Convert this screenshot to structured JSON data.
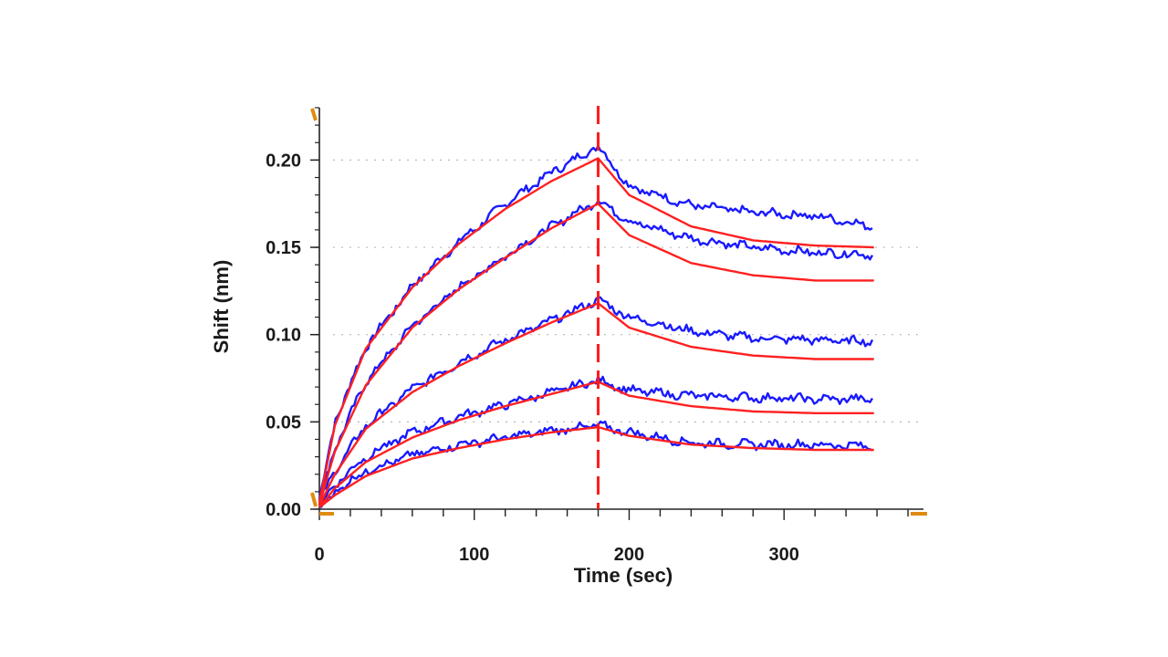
{
  "chart_data": {
    "type": "line",
    "title": "",
    "xlabel": "Time (sec)",
    "ylabel": "Shift (nm)",
    "xlim": [
      0,
      390
    ],
    "ylim": [
      0,
      0.23
    ],
    "xticks": [
      "0",
      "100",
      "200",
      "300"
    ],
    "xtick_values": [
      0,
      100,
      200,
      300
    ],
    "yticks": [
      "0.00",
      "0.05",
      "0.10",
      "0.15",
      "0.20"
    ],
    "ytick_values": [
      0,
      0.05,
      0.1,
      0.15,
      0.2
    ],
    "grid": "horizontal dotted",
    "association_end_x": 180,
    "end_x": 358,
    "series": [
      {
        "role": "measured",
        "color": "#1a1aff",
        "x": [
          0,
          10,
          30,
          60,
          90,
          120,
          150,
          180,
          200,
          240,
          280,
          320,
          358
        ],
        "values": [
          0.005,
          0.05,
          0.093,
          0.128,
          0.153,
          0.175,
          0.193,
          0.208,
          0.185,
          0.174,
          0.17,
          0.168,
          0.162
        ]
      },
      {
        "role": "fit",
        "color": "#ff2020",
        "x": [
          0,
          10,
          30,
          60,
          90,
          120,
          150,
          180,
          200,
          240,
          280,
          320,
          358
        ],
        "values": [
          0.004,
          0.048,
          0.092,
          0.127,
          0.152,
          0.172,
          0.188,
          0.201,
          0.18,
          0.162,
          0.154,
          0.151,
          0.15
        ]
      },
      {
        "role": "measured",
        "color": "#1a1aff",
        "x": [
          0,
          10,
          30,
          60,
          90,
          120,
          150,
          180,
          200,
          240,
          280,
          320,
          358
        ],
        "values": [
          0.004,
          0.035,
          0.073,
          0.105,
          0.127,
          0.145,
          0.162,
          0.177,
          0.165,
          0.155,
          0.15,
          0.147,
          0.146
        ]
      },
      {
        "role": "fit",
        "color": "#ff2020",
        "x": [
          0,
          10,
          30,
          60,
          90,
          120,
          150,
          180,
          200,
          240,
          280,
          320,
          358
        ],
        "values": [
          0.003,
          0.033,
          0.071,
          0.104,
          0.126,
          0.144,
          0.161,
          0.175,
          0.157,
          0.141,
          0.134,
          0.131,
          0.131
        ]
      },
      {
        "role": "measured",
        "color": "#1a1aff",
        "x": [
          0,
          10,
          30,
          60,
          90,
          120,
          150,
          180,
          200,
          240,
          280,
          320,
          358
        ],
        "values": [
          0.003,
          0.022,
          0.048,
          0.069,
          0.084,
          0.097,
          0.108,
          0.12,
          0.11,
          0.102,
          0.098,
          0.097,
          0.096
        ]
      },
      {
        "role": "fit",
        "color": "#ff2020",
        "x": [
          0,
          10,
          30,
          60,
          90,
          120,
          150,
          180,
          200,
          240,
          280,
          320,
          358
        ],
        "values": [
          0.002,
          0.02,
          0.046,
          0.067,
          0.082,
          0.095,
          0.107,
          0.118,
          0.104,
          0.093,
          0.088,
          0.086,
          0.086
        ]
      },
      {
        "role": "measured",
        "color": "#1a1aff",
        "x": [
          0,
          10,
          30,
          60,
          90,
          120,
          150,
          180,
          200,
          240,
          280,
          320,
          358
        ],
        "values": [
          0.002,
          0.014,
          0.03,
          0.044,
          0.053,
          0.06,
          0.067,
          0.074,
          0.068,
          0.065,
          0.064,
          0.063,
          0.063
        ]
      },
      {
        "role": "fit",
        "color": "#ff2020",
        "x": [
          0,
          10,
          30,
          60,
          90,
          120,
          150,
          180,
          200,
          240,
          280,
          320,
          358
        ],
        "values": [
          0.001,
          0.012,
          0.027,
          0.041,
          0.051,
          0.059,
          0.066,
          0.073,
          0.065,
          0.059,
          0.056,
          0.055,
          0.055
        ]
      },
      {
        "role": "measured",
        "color": "#1a1aff",
        "x": [
          0,
          10,
          30,
          60,
          90,
          120,
          150,
          180,
          200,
          240,
          280,
          320,
          358
        ],
        "values": [
          0.001,
          0.01,
          0.022,
          0.031,
          0.037,
          0.041,
          0.045,
          0.048,
          0.044,
          0.038,
          0.037,
          0.037,
          0.036
        ]
      },
      {
        "role": "fit",
        "color": "#ff2020",
        "x": [
          0,
          10,
          30,
          60,
          90,
          120,
          150,
          180,
          200,
          240,
          280,
          320,
          358
        ],
        "values": [
          0.001,
          0.008,
          0.019,
          0.029,
          0.035,
          0.04,
          0.044,
          0.047,
          0.042,
          0.037,
          0.035,
          0.034,
          0.034
        ]
      }
    ]
  }
}
